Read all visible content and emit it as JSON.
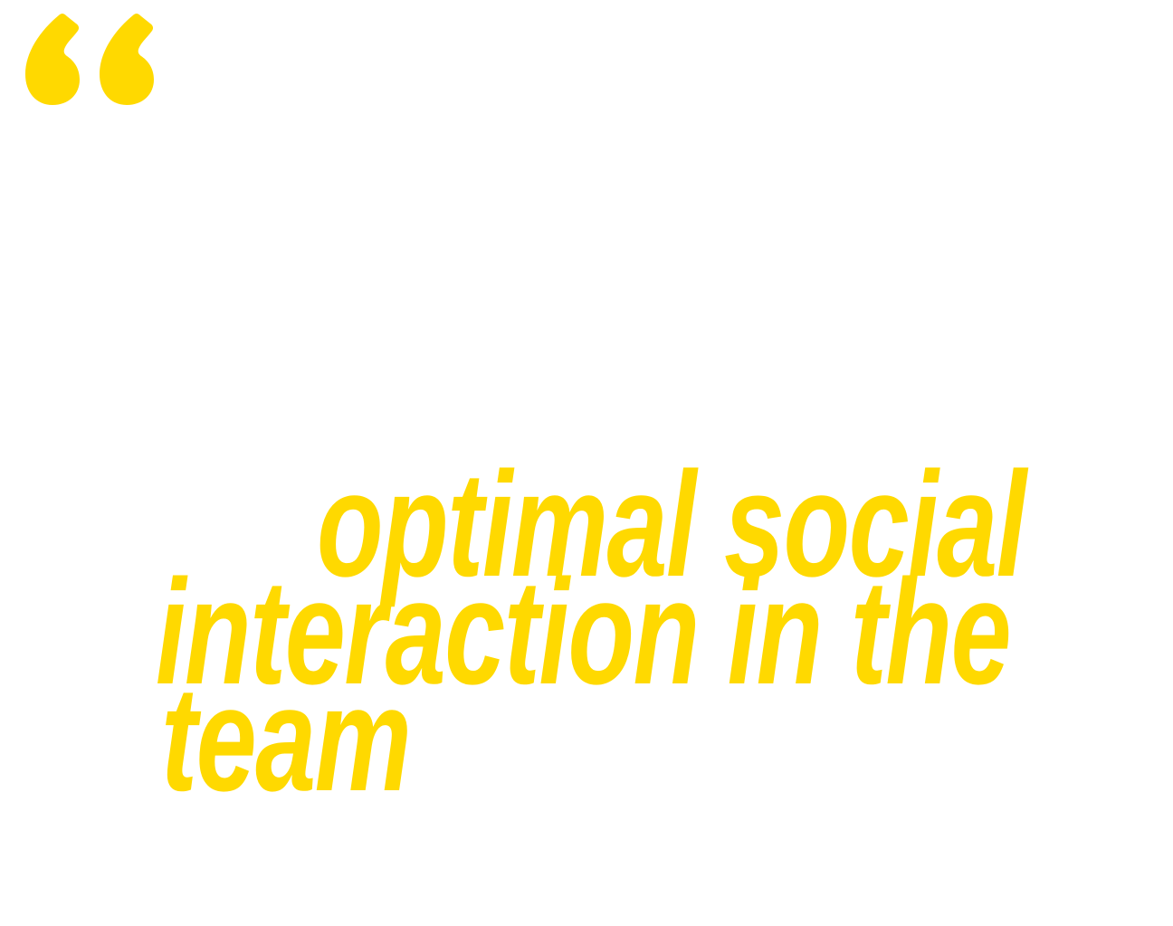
{
  "colors": {
    "accent": "#FFD900",
    "background": "#FFFFFF"
  },
  "quote_icon": "open-quote-icon",
  "quote": {
    "lines": [
      "optimal social",
      "interaction in the",
      "team"
    ]
  }
}
